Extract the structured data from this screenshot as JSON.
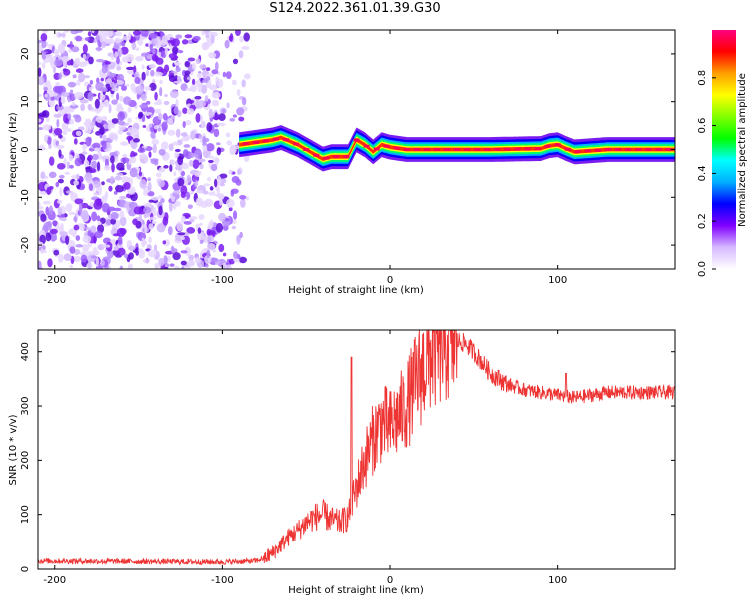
{
  "page": {
    "title": "S124.2022.361.01.39.G30"
  },
  "chart_data": [
    {
      "type": "heatmap",
      "xlabel": "Height of straight line (km)",
      "ylabel": "Frequency (Hz)",
      "xlim": [
        -210,
        170
      ],
      "ylim": [
        -25,
        25
      ],
      "xticks": [
        -200,
        -100,
        0,
        100
      ],
      "yticks": [
        -20,
        -10,
        0,
        10,
        20
      ],
      "colorbar": {
        "label": "Normalized spectral amplitude",
        "range": [
          0,
          1
        ],
        "ticks": [
          "0.0",
          "0.2",
          "0.4",
          "0.6",
          "0.8"
        ],
        "colors": [
          "#ffffff",
          "#d6b8ff",
          "#8000ff",
          "#0000ff",
          "#00b0ff",
          "#00ffff",
          "#00ff00",
          "#80ff00",
          "#ffff00",
          "#ffa000",
          "#ff0000",
          "#ff0080"
        ]
      },
      "noise_region_x": [
        -210,
        -85
      ],
      "ridge": {
        "x": [
          -90,
          -80,
          -70,
          -65,
          -55,
          -45,
          -40,
          -35,
          -30,
          -25,
          -20,
          -15,
          -10,
          -5,
          0,
          10,
          30,
          60,
          90,
          95,
          100,
          105,
          110,
          130,
          150,
          170
        ],
        "frequency": [
          1.0,
          1.5,
          2.0,
          2.5,
          1.0,
          -1.0,
          -2.0,
          -1.5,
          -1.5,
          -1.5,
          2.0,
          1.0,
          -0.5,
          1.0,
          0.5,
          0.0,
          0.0,
          0.0,
          0.2,
          0.8,
          1.0,
          0.2,
          -0.5,
          0.0,
          0.0,
          0.0
        ]
      }
    },
    {
      "type": "line",
      "xlabel": "Height of straight line (km)",
      "ylabel": "SNR (10 * v/v)",
      "xlim": [
        -210,
        170
      ],
      "ylim": [
        0,
        440
      ],
      "xticks": [
        -200,
        -100,
        0,
        100
      ],
      "yticks": [
        0,
        100,
        200,
        300,
        400
      ],
      "series": [
        {
          "color": "#ee3333",
          "x": [
            -210,
            -150,
            -100,
            -80,
            -75,
            -70,
            -65,
            -60,
            -55,
            -50,
            -45,
            -40,
            -35,
            -30,
            -25,
            -20,
            -15,
            -10,
            -5,
            0,
            5,
            10,
            15,
            20,
            25,
            30,
            35,
            40,
            45,
            50,
            55,
            60,
            70,
            80,
            90,
            100,
            110,
            120,
            130,
            140,
            150,
            160,
            170
          ],
          "y": [
            15,
            14,
            13,
            15,
            20,
            30,
            45,
            60,
            70,
            85,
            95,
            100,
            90,
            85,
            95,
            150,
            200,
            240,
            270,
            260,
            280,
            300,
            340,
            370,
            400,
            410,
            420,
            420,
            415,
            400,
            380,
            360,
            340,
            330,
            325,
            320,
            315,
            320,
            325,
            325,
            325,
            325,
            325
          ]
        }
      ],
      "spikes": [
        {
          "x": -23,
          "y": 390
        },
        {
          "x": 105,
          "y": 360
        }
      ]
    }
  ]
}
